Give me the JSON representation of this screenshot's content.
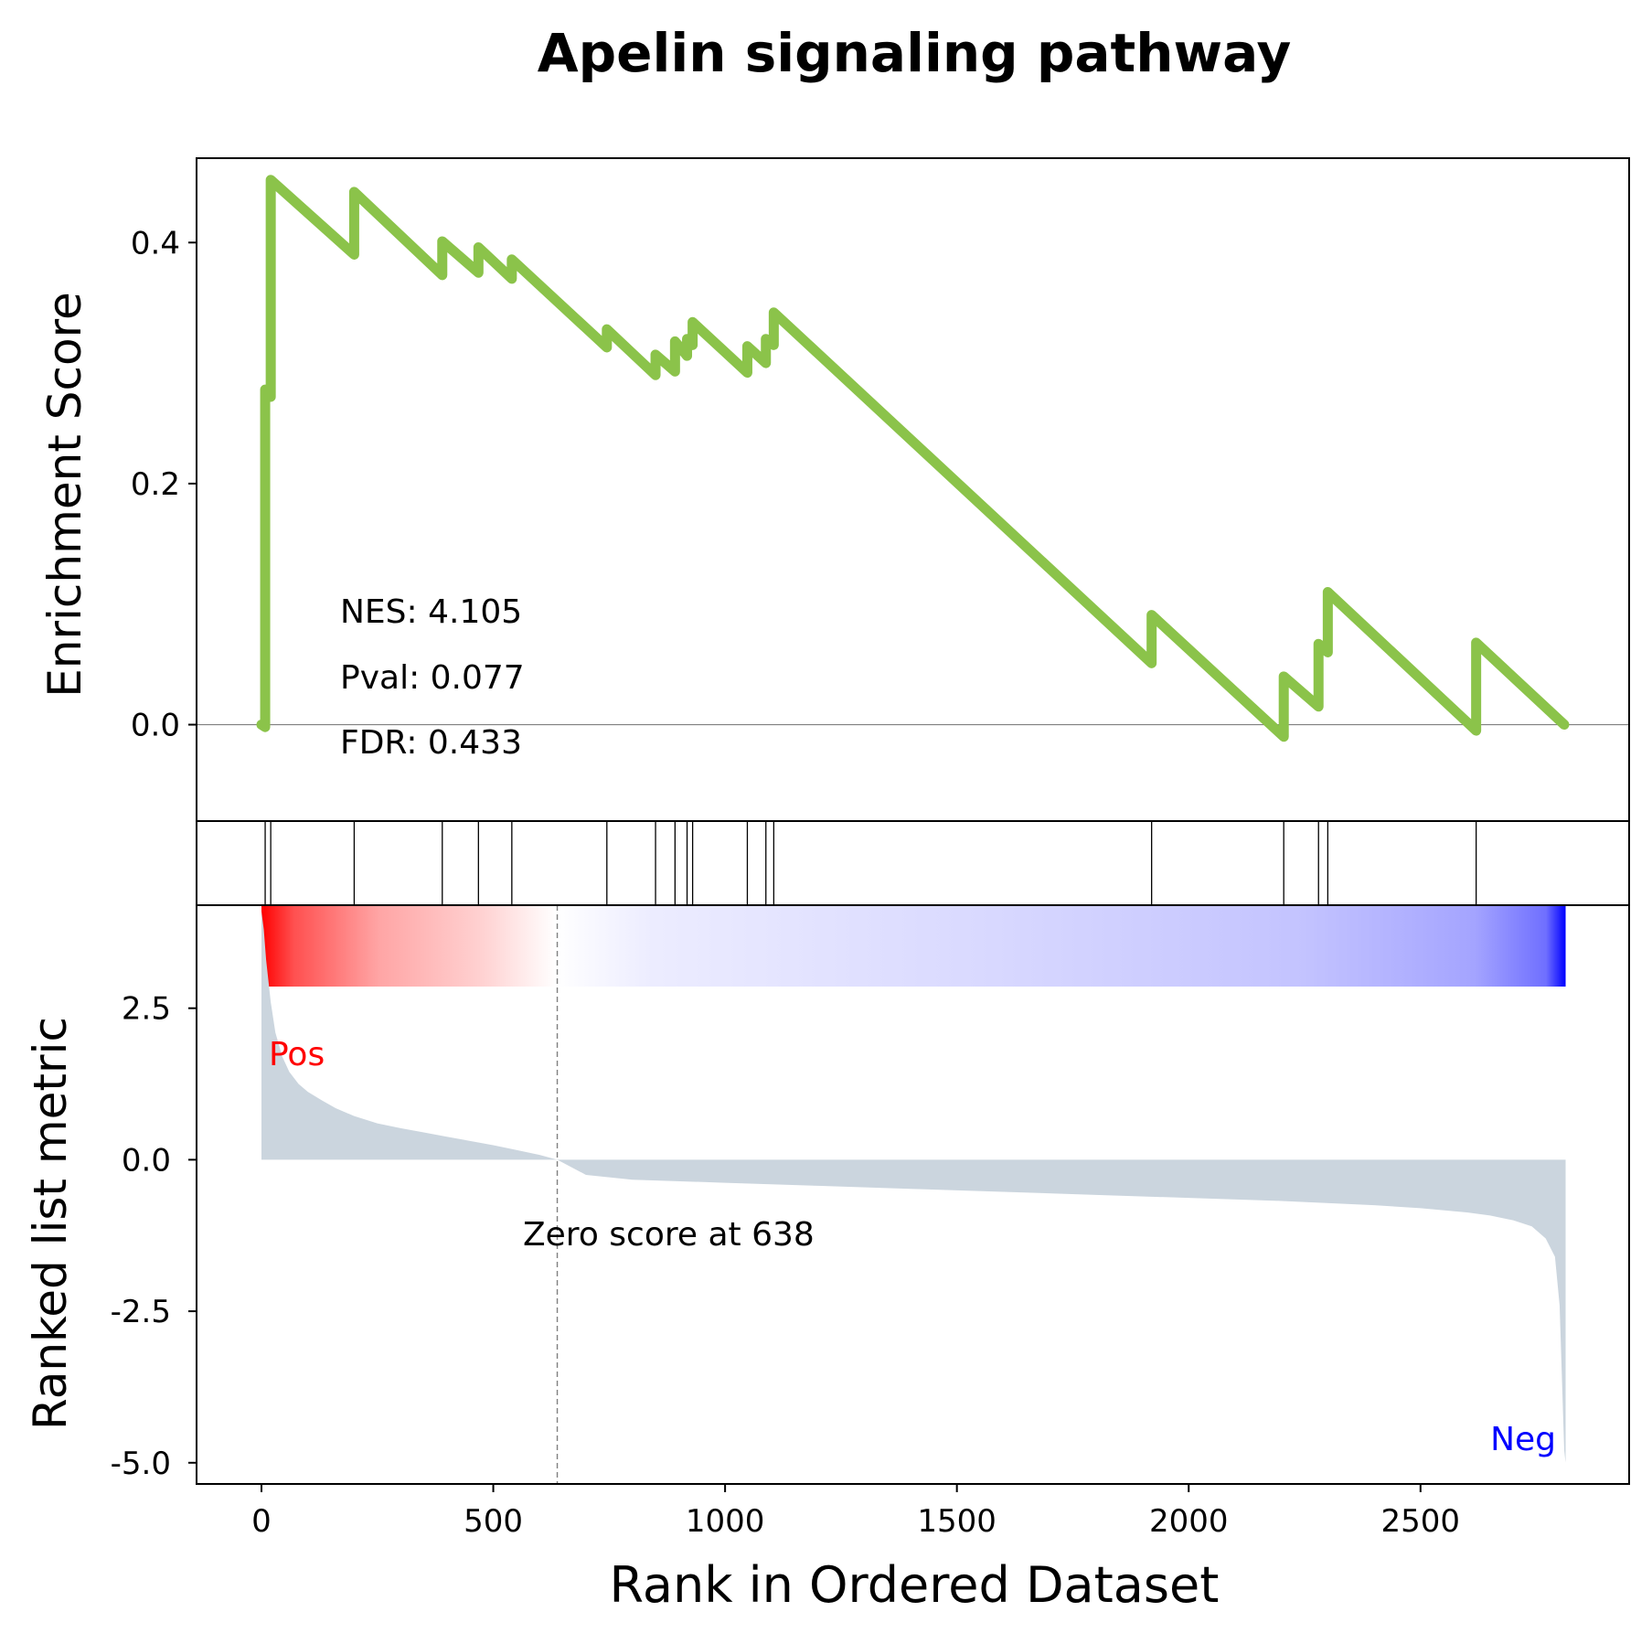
{
  "chart_data": {
    "type": "line",
    "title": "Apelin signaling pathway",
    "xlabel": "Rank in Ordered Dataset",
    "ylabel_top": "Enrichment Score",
    "ylabel_bottom": "Ranked list metric",
    "xlim": [
      -140,
      2950
    ],
    "x_ticks": [
      0,
      500,
      1000,
      1500,
      2000,
      2500
    ],
    "es_ylim": [
      -0.08,
      0.47
    ],
    "es_ticks": [
      0.0,
      0.2,
      0.4
    ],
    "es_tick_labels": [
      "0.0",
      "0.2",
      "0.4"
    ],
    "metric_ylim": [
      -5.35,
      4.2
    ],
    "metric_ticks": [
      2.5,
      0.0,
      -2.5,
      -5.0
    ],
    "metric_tick_labels": [
      "2.5",
      "0.0",
      "-2.5",
      "-5.0"
    ],
    "series": [
      {
        "name": "",
        "x": [
          0,
          8,
          8,
          20,
          20,
          200,
          200,
          390,
          390,
          468,
          468,
          540,
          540,
          745,
          745,
          850,
          850,
          892,
          892,
          918,
          918,
          930,
          930,
          1048,
          1048,
          1088,
          1088,
          1105,
          1105,
          1920,
          1920,
          2205,
          2205,
          2280,
          2280,
          2300,
          2300,
          2620,
          2620,
          2810
        ],
        "y": [
          0.0,
          -0.002,
          0.278,
          0.272,
          0.452,
          0.39,
          0.442,
          0.373,
          0.401,
          0.375,
          0.396,
          0.37,
          0.386,
          0.313,
          0.328,
          0.29,
          0.307,
          0.293,
          0.318,
          0.306,
          0.32,
          0.315,
          0.334,
          0.292,
          0.314,
          0.3,
          0.32,
          0.315,
          0.342,
          0.051,
          0.091,
          -0.01,
          0.04,
          0.015,
          0.067,
          0.06,
          0.11,
          -0.005,
          0.068,
          0.0
        ]
      }
    ],
    "hits": [
      8,
      20,
      200,
      390,
      468,
      540,
      745,
      850,
      892,
      918,
      930,
      1048,
      1088,
      1105,
      1920,
      2205,
      2280,
      2300,
      2620
    ],
    "metric_curve": {
      "x": [
        0,
        5,
        10,
        20,
        30,
        45,
        60,
        80,
        100,
        130,
        160,
        200,
        250,
        300,
        350,
        400,
        450,
        500,
        550,
        600,
        638,
        700,
        800,
        1000,
        1200,
        1400,
        1600,
        1800,
        2000,
        2200,
        2400,
        2500,
        2600,
        2650,
        2700,
        2740,
        2770,
        2790,
        2800,
        2805,
        2810,
        2813
      ],
      "y": [
        4.1,
        3.8,
        3.3,
        2.6,
        2.1,
        1.7,
        1.45,
        1.25,
        1.12,
        0.98,
        0.85,
        0.72,
        0.6,
        0.52,
        0.45,
        0.38,
        0.31,
        0.24,
        0.16,
        0.08,
        0.0,
        -0.25,
        -0.33,
        -0.38,
        -0.43,
        -0.48,
        -0.53,
        -0.58,
        -0.63,
        -0.68,
        -0.75,
        -0.8,
        -0.87,
        -0.92,
        -1.0,
        -1.1,
        -1.3,
        -1.6,
        -2.4,
        -3.6,
        -4.8,
        -5.0
      ]
    },
    "zero_cross": 638,
    "zero_label": "Zero score at 638",
    "pos_label": "Pos",
    "neg_label": "Neg",
    "stats": [
      "NES: 4.105",
      "Pval: 0.077",
      "FDR: 0.433"
    ],
    "colors": {
      "es_line": "#8bc34a",
      "metric_fill": "#cbd5de",
      "heat_pos": "#ff0000",
      "heat_neg": "#0000ff",
      "pos_text": "#ff0000",
      "neg_text": "#0000ff",
      "zero_line": "#808080"
    },
    "grid": false
  }
}
